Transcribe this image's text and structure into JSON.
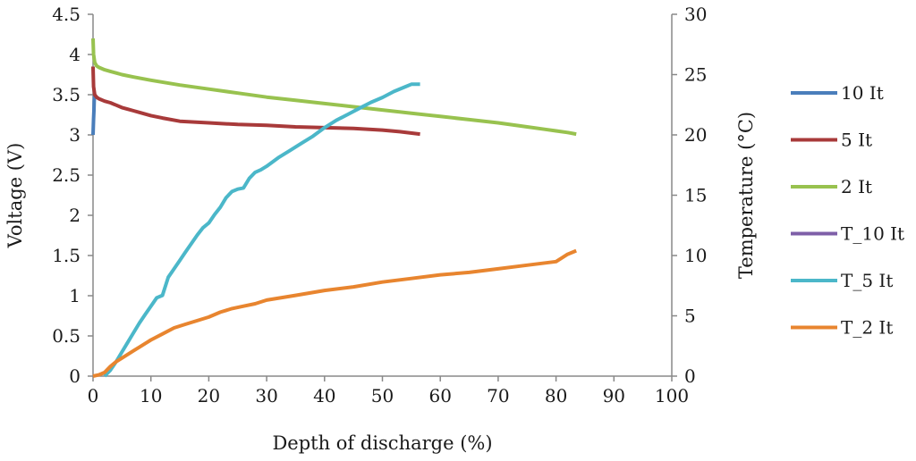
{
  "chart_data": {
    "type": "line",
    "title": "",
    "xlabel": "Depth of discharge (%)",
    "ylabel": "Voltage (V)",
    "y2label": "Temperature (°C)",
    "xlim": [
      0,
      100
    ],
    "ylim": [
      0,
      4.5
    ],
    "y2lim": [
      0,
      30
    ],
    "xticks": [
      "0",
      "10",
      "20",
      "30",
      "40",
      "50",
      "60",
      "70",
      "80",
      "90",
      "100"
    ],
    "yticks": [
      "0",
      "0.5",
      "1",
      "1.5",
      "2",
      "2.5",
      "3",
      "3.5",
      "4",
      "4.5"
    ],
    "y2ticks": [
      "0",
      "5",
      "10",
      "15",
      "20",
      "25",
      "30"
    ],
    "grid": false,
    "legend_position": "right",
    "series": [
      {
        "name": "10 It",
        "axis": "left",
        "color": "#4a7ebb",
        "x": [
          0,
          0.05,
          0.1,
          0.15,
          0.2,
          0.3
        ],
        "y": [
          3.0,
          3.1,
          3.2,
          3.3,
          3.42,
          3.5
        ]
      },
      {
        "name": "5 It",
        "axis": "left",
        "color": "#a83a3a",
        "x": [
          0,
          0.1,
          0.3,
          0.6,
          1,
          2,
          3,
          4,
          5,
          6,
          7,
          8,
          10,
          12,
          15,
          20,
          25,
          30,
          35,
          40,
          45,
          50,
          53,
          56.5
        ],
        "y": [
          3.85,
          3.6,
          3.5,
          3.47,
          3.45,
          3.42,
          3.4,
          3.37,
          3.34,
          3.32,
          3.3,
          3.28,
          3.24,
          3.21,
          3.17,
          3.15,
          3.13,
          3.12,
          3.1,
          3.09,
          3.08,
          3.06,
          3.04,
          3.01
        ]
      },
      {
        "name": "2 It",
        "axis": "left",
        "color": "#98c24f",
        "x": [
          0,
          0.1,
          0.3,
          0.6,
          1,
          2,
          3,
          4,
          5,
          7,
          10,
          15,
          20,
          25,
          30,
          35,
          40,
          45,
          50,
          55,
          60,
          65,
          70,
          75,
          78,
          80,
          82,
          83.5
        ],
        "y": [
          4.2,
          4.0,
          3.9,
          3.86,
          3.84,
          3.81,
          3.79,
          3.77,
          3.75,
          3.72,
          3.68,
          3.62,
          3.57,
          3.52,
          3.47,
          3.43,
          3.39,
          3.35,
          3.31,
          3.27,
          3.23,
          3.19,
          3.15,
          3.1,
          3.07,
          3.05,
          3.03,
          3.01
        ]
      },
      {
        "name": "T_10 It",
        "axis": "right",
        "color": "#7e5fa8",
        "x": [],
        "y": []
      },
      {
        "name": "T_5 It",
        "axis": "right",
        "color": "#4bb7c9",
        "x": [
          2,
          3,
          4,
          5,
          6,
          7,
          8,
          9,
          10,
          11,
          12,
          13,
          14,
          15,
          16,
          17,
          18,
          19,
          20,
          21,
          22,
          23,
          24,
          25,
          26,
          27,
          28,
          29,
          30,
          32,
          34,
          36,
          38,
          40,
          42,
          44,
          46,
          48,
          50,
          52,
          54,
          55,
          56.5
        ],
        "y": [
          0,
          0.5,
          1.2,
          2.0,
          2.8,
          3.6,
          4.4,
          5.1,
          5.8,
          6.5,
          6.7,
          8.2,
          8.9,
          9.6,
          10.3,
          11.0,
          11.7,
          12.3,
          12.7,
          13.4,
          14.0,
          14.8,
          15.3,
          15.5,
          15.6,
          16.4,
          16.9,
          17.1,
          17.4,
          18.1,
          18.7,
          19.3,
          19.9,
          20.6,
          21.2,
          21.7,
          22.2,
          22.7,
          23.1,
          23.6,
          24.0,
          24.2,
          24.2
        ]
      },
      {
        "name": "T_2 It",
        "axis": "right",
        "color": "#e8852f",
        "x": [
          0,
          1,
          2,
          3,
          4,
          5,
          6,
          7,
          8,
          9,
          10,
          12,
          14,
          16,
          18,
          20,
          22,
          24,
          26,
          28,
          30,
          35,
          40,
          45,
          50,
          55,
          60,
          65,
          70,
          75,
          80,
          81,
          82,
          83.5
        ],
        "y": [
          0,
          0.1,
          0.3,
          0.8,
          1.2,
          1.5,
          1.8,
          2.1,
          2.4,
          2.7,
          3.0,
          3.5,
          4.0,
          4.3,
          4.6,
          4.9,
          5.3,
          5.6,
          5.8,
          6.0,
          6.3,
          6.7,
          7.1,
          7.4,
          7.8,
          8.1,
          8.4,
          8.6,
          8.9,
          9.2,
          9.5,
          9.8,
          10.1,
          10.4
        ]
      }
    ]
  }
}
